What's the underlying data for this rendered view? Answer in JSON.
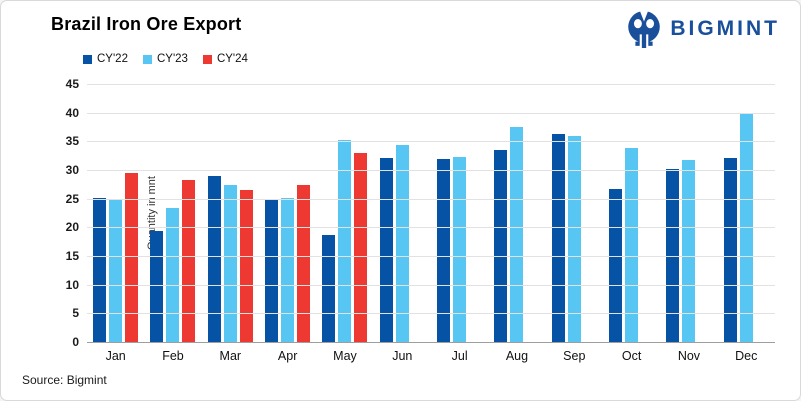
{
  "header": {
    "title": "Brazil Iron Ore Export",
    "brand": "BIGMINT"
  },
  "footer": {
    "source": "Source: Bigmint"
  },
  "colors": {
    "cy22": "#0653a6",
    "cy23": "#57c6f2",
    "cy24": "#ee3932",
    "brand_navy": "#1a4f9c",
    "gridline": "#e2e2e2",
    "axis_line": "#9e9e9e"
  },
  "chart_data": {
    "type": "bar",
    "title": "Brazil Iron Ore Export",
    "xlabel": "",
    "ylabel": "Quantity in mnt",
    "ylim": [
      0,
      45
    ],
    "ytick_step": 5,
    "grid": true,
    "legend_position": "top-left",
    "categories": [
      "Jan",
      "Feb",
      "Mar",
      "Apr",
      "May",
      "Jun",
      "Jul",
      "Aug",
      "Sep",
      "Oct",
      "Nov",
      "Dec"
    ],
    "series": [
      {
        "name": "CY'22",
        "color": "#0653a6",
        "values": [
          25.1,
          19.4,
          28.9,
          24.8,
          18.6,
          32.1,
          31.9,
          33.5,
          36.2,
          26.7,
          30.1,
          32.1
        ]
      },
      {
        "name": "CY'23",
        "color": "#57c6f2",
        "values": [
          24.7,
          23.4,
          27.3,
          25.2,
          35.2,
          34.4,
          32.2,
          37.5,
          35.9,
          33.9,
          31.7,
          39.8
        ]
      },
      {
        "name": "CY'24",
        "color": "#ee3932",
        "values": [
          29.5,
          28.3,
          26.5,
          27.4,
          32.9,
          null,
          null,
          null,
          null,
          null,
          null,
          null
        ]
      }
    ]
  }
}
